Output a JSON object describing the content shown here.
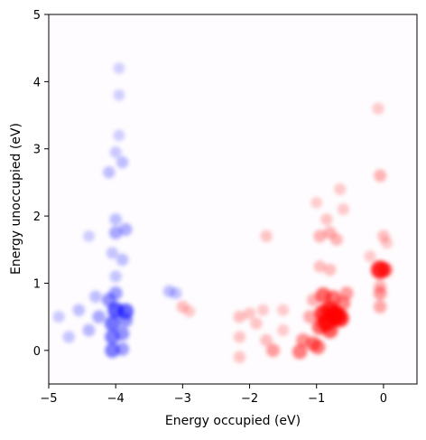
{
  "chart_data": {
    "type": "heatmap",
    "xlabel": "Energy occupied (eV)",
    "ylabel": "Energy unoccupied (eV)",
    "xlim": [
      -5,
      0.5
    ],
    "ylim": [
      -0.5,
      5
    ],
    "x_ticks": [
      -5,
      -4,
      -3,
      -2,
      -1,
      0
    ],
    "x_tick_labels": [
      "−5",
      "−4",
      "−3",
      "−2",
      "−1",
      "0"
    ],
    "y_ticks": [
      0,
      1,
      2,
      3,
      4,
      5
    ],
    "y_tick_labels": [
      "0",
      "1",
      "2",
      "3",
      "4",
      "5"
    ],
    "colormap": "bwr",
    "colors": {
      "negative": "#0000ff",
      "positive": "#ff0000",
      "background": "#fefcfe"
    },
    "grid": false,
    "blobs": [
      {
        "x": -4.05,
        "y": 0.0,
        "v": -0.45
      },
      {
        "x": -3.9,
        "y": 0.02,
        "v": -0.3
      },
      {
        "x": -4.05,
        "y": 0.2,
        "v": -0.45
      },
      {
        "x": -3.9,
        "y": 0.25,
        "v": -0.35
      },
      {
        "x": -4.05,
        "y": 0.4,
        "v": -0.5
      },
      {
        "x": -3.85,
        "y": 0.45,
        "v": -0.35
      },
      {
        "x": -4.0,
        "y": 0.6,
        "v": -0.6
      },
      {
        "x": -3.85,
        "y": 0.58,
        "v": -0.55
      },
      {
        "x": -4.1,
        "y": 0.75,
        "v": -0.35
      },
      {
        "x": -4.0,
        "y": 0.85,
        "v": -0.3
      },
      {
        "x": -4.25,
        "y": 0.5,
        "v": -0.25
      },
      {
        "x": -4.4,
        "y": 0.3,
        "v": -0.18
      },
      {
        "x": -4.55,
        "y": 0.6,
        "v": -0.15
      },
      {
        "x": -4.7,
        "y": 0.2,
        "v": -0.12
      },
      {
        "x": -4.85,
        "y": 0.5,
        "v": -0.1
      },
      {
        "x": -4.3,
        "y": 0.8,
        "v": -0.15
      },
      {
        "x": -4.0,
        "y": 1.1,
        "v": -0.12
      },
      {
        "x": -3.9,
        "y": 1.35,
        "v": -0.15
      },
      {
        "x": -4.05,
        "y": 1.45,
        "v": -0.12
      },
      {
        "x": -4.0,
        "y": 1.75,
        "v": -0.25
      },
      {
        "x": -3.85,
        "y": 1.8,
        "v": -0.22
      },
      {
        "x": -4.0,
        "y": 1.95,
        "v": -0.15
      },
      {
        "x": -4.4,
        "y": 1.7,
        "v": -0.08
      },
      {
        "x": -4.1,
        "y": 2.65,
        "v": -0.15
      },
      {
        "x": -3.9,
        "y": 2.8,
        "v": -0.15
      },
      {
        "x": -4.0,
        "y": 2.95,
        "v": -0.1
      },
      {
        "x": -3.95,
        "y": 3.2,
        "v": -0.07
      },
      {
        "x": -3.95,
        "y": 3.8,
        "v": -0.07
      },
      {
        "x": -3.95,
        "y": 4.2,
        "v": -0.06
      },
      {
        "x": -3.2,
        "y": 0.88,
        "v": -0.15
      },
      {
        "x": -3.1,
        "y": 0.85,
        "v": -0.12
      },
      {
        "x": -3.0,
        "y": 0.65,
        "v": 0.15
      },
      {
        "x": -2.9,
        "y": 0.58,
        "v": 0.1
      },
      {
        "x": -2.15,
        "y": 0.5,
        "v": 0.15
      },
      {
        "x": -2.15,
        "y": 0.2,
        "v": 0.12
      },
      {
        "x": -2.15,
        "y": -0.1,
        "v": 0.12
      },
      {
        "x": -2.0,
        "y": 0.55,
        "v": 0.12
      },
      {
        "x": -1.9,
        "y": 0.4,
        "v": 0.12
      },
      {
        "x": -1.8,
        "y": 0.6,
        "v": 0.1
      },
      {
        "x": -1.75,
        "y": 0.15,
        "v": 0.15
      },
      {
        "x": -1.65,
        "y": 0.0,
        "v": 0.3
      },
      {
        "x": -1.75,
        "y": 1.7,
        "v": 0.12
      },
      {
        "x": -1.5,
        "y": 0.3,
        "v": 0.1
      },
      {
        "x": -1.5,
        "y": 0.6,
        "v": 0.1
      },
      {
        "x": -1.25,
        "y": -0.02,
        "v": 0.45
      },
      {
        "x": -1.2,
        "y": 0.15,
        "v": 0.35
      },
      {
        "x": -1.05,
        "y": 0.1,
        "v": 0.45
      },
      {
        "x": -0.98,
        "y": 0.05,
        "v": 0.45
      },
      {
        "x": -0.95,
        "y": 0.35,
        "v": 0.55
      },
      {
        "x": -0.9,
        "y": 0.55,
        "v": 0.75
      },
      {
        "x": -0.85,
        "y": 0.42,
        "v": 0.85
      },
      {
        "x": -0.8,
        "y": 0.6,
        "v": 0.75
      },
      {
        "x": -0.72,
        "y": 0.52,
        "v": 1.0
      },
      {
        "x": -0.65,
        "y": 0.48,
        "v": 0.8
      },
      {
        "x": -0.8,
        "y": 0.3,
        "v": 0.6
      },
      {
        "x": -0.75,
        "y": 0.78,
        "v": 0.5
      },
      {
        "x": -0.9,
        "y": 0.82,
        "v": 0.55
      },
      {
        "x": -0.6,
        "y": 0.7,
        "v": 0.4
      },
      {
        "x": -0.55,
        "y": 0.85,
        "v": 0.3
      },
      {
        "x": -1.1,
        "y": 0.5,
        "v": 0.25
      },
      {
        "x": -1.05,
        "y": 0.75,
        "v": 0.2
      },
      {
        "x": -0.95,
        "y": 1.25,
        "v": 0.15
      },
      {
        "x": -0.8,
        "y": 1.2,
        "v": 0.15
      },
      {
        "x": -0.95,
        "y": 1.7,
        "v": 0.2
      },
      {
        "x": -0.8,
        "y": 1.75,
        "v": 0.2
      },
      {
        "x": -0.7,
        "y": 1.65,
        "v": 0.18
      },
      {
        "x": -0.85,
        "y": 1.95,
        "v": 0.12
      },
      {
        "x": -0.6,
        "y": 2.1,
        "v": 0.1
      },
      {
        "x": -0.65,
        "y": 2.4,
        "v": 0.1
      },
      {
        "x": -1.0,
        "y": 2.2,
        "v": 0.08
      },
      {
        "x": -0.05,
        "y": 1.2,
        "v": 0.85
      },
      {
        "x": 0.02,
        "y": 1.2,
        "v": 0.5
      },
      {
        "x": -0.05,
        "y": 0.85,
        "v": 0.3
      },
      {
        "x": -0.05,
        "y": 0.65,
        "v": 0.25
      },
      {
        "x": -0.05,
        "y": 0.95,
        "v": 0.2
      },
      {
        "x": 0.0,
        "y": 1.7,
        "v": 0.15
      },
      {
        "x": -0.05,
        "y": 2.6,
        "v": 0.2
      },
      {
        "x": -0.08,
        "y": 3.6,
        "v": 0.1
      },
      {
        "x": 0.05,
        "y": 1.6,
        "v": 0.1
      },
      {
        "x": -0.2,
        "y": 1.4,
        "v": 0.1
      }
    ]
  }
}
